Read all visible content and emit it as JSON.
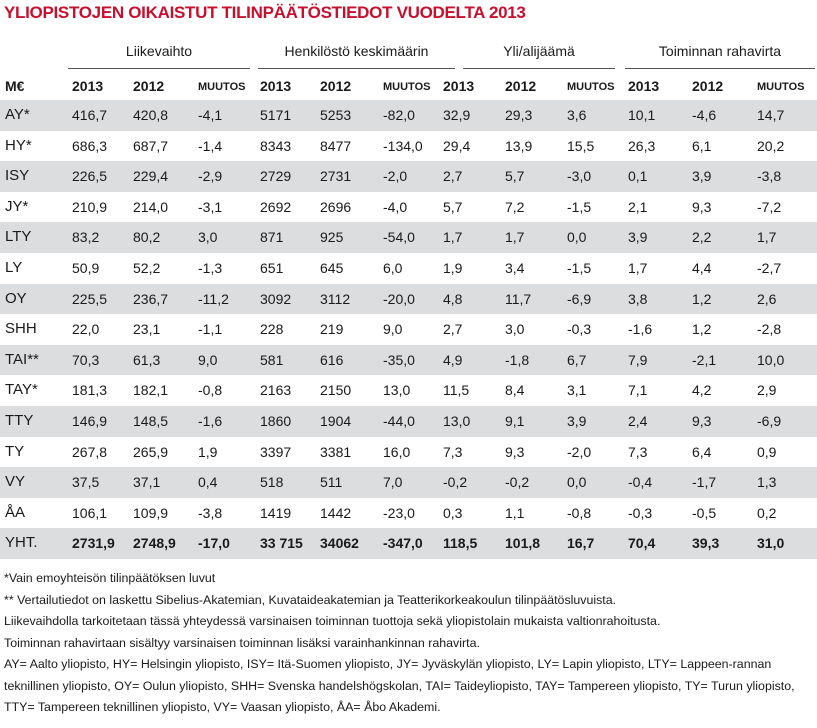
{
  "title": "YLIOPISTOJEN OIKAISTUT TILINPÄÄTÖSTIEDOT VUODELTA 2013",
  "table": {
    "groups": [
      "Liikevaihto",
      "Henkilöstö keskimäärin",
      "Yli/alijäämä",
      "Toiminnan rahavirta"
    ],
    "subheaders": [
      "M€",
      "2013",
      "2012",
      "MUUTOS",
      "2013",
      "2012",
      "MUUTOS",
      "2013",
      "2012",
      "MUUTOS",
      "2013",
      "2012",
      "MUUTOS"
    ],
    "rows": [
      [
        "AY*",
        "416,7",
        "420,8",
        "-4,1",
        "5171",
        "5253",
        "-82,0",
        "32,9",
        "29,3",
        "3,6",
        "10,1",
        "-4,6",
        "14,7"
      ],
      [
        "HY*",
        "686,3",
        "687,7",
        "-1,4",
        "8343",
        "8477",
        "-134,0",
        "29,4",
        "13,9",
        "15,5",
        "26,3",
        "6,1",
        "20,2"
      ],
      [
        "ISY",
        "226,5",
        "229,4",
        "-2,9",
        "2729",
        "2731",
        "-2,0",
        "2,7",
        "5,7",
        "-3,0",
        "0,1",
        "3,9",
        "-3,8"
      ],
      [
        "JY*",
        "210,9",
        "214,0",
        "-3,1",
        "2692",
        "2696",
        "-4,0",
        "5,7",
        "7,2",
        "-1,5",
        "2,1",
        "9,3",
        "-7,2"
      ],
      [
        "LTY",
        "83,2",
        "80,2",
        "3,0",
        "871",
        "925",
        "-54,0",
        "1,7",
        "1,7",
        "0,0",
        "3,9",
        "2,2",
        "1,7"
      ],
      [
        "LY",
        "50,9",
        "52,2",
        "-1,3",
        "651",
        "645",
        "6,0",
        "1,9",
        "3,4",
        "-1,5",
        "1,7",
        "4,4",
        "-2,7"
      ],
      [
        "OY",
        "225,5",
        "236,7",
        "-11,2",
        "3092",
        "3112",
        "-20,0",
        "4,8",
        "11,7",
        "-6,9",
        "3,8",
        "1,2",
        "2,6"
      ],
      [
        "SHH",
        "22,0",
        "23,1",
        "-1,1",
        "228",
        "219",
        "9,0",
        "2,7",
        "3,0",
        "-0,3",
        "-1,6",
        "1,2",
        "-2,8"
      ],
      [
        "TAI**",
        "70,3",
        "61,3",
        "9,0",
        "581",
        "616",
        "-35,0",
        "4,9",
        "-1,8",
        "6,7",
        "7,9",
        "-2,1",
        "10,0"
      ],
      [
        "TAY*",
        "181,3",
        "182,1",
        "-0,8",
        "2163",
        "2150",
        "13,0",
        "11,5",
        "8,4",
        "3,1",
        "7,1",
        "4,2",
        "2,9"
      ],
      [
        "TTY",
        "146,9",
        "148,5",
        "-1,6",
        "1860",
        "1904",
        "-44,0",
        "13,0",
        "9,1",
        "3,9",
        "2,4",
        "9,3",
        "-6,9"
      ],
      [
        "TY",
        "267,8",
        "265,9",
        "1,9",
        "3397",
        "3381",
        "16,0",
        "7,3",
        "9,3",
        "-2,0",
        "7,3",
        "6,4",
        "0,9"
      ],
      [
        "VY",
        "37,5",
        "37,1",
        "0,4",
        "518",
        "511",
        "7,0",
        "-0,2",
        "-0,2",
        "0,0",
        "-0,4",
        "-1,7",
        "1,3"
      ],
      [
        "ÅA",
        "106,1",
        "109,9",
        "-3,8",
        "1419",
        "1442",
        "-23,0",
        "0,3",
        "1,1",
        "-0,8",
        "-0,3",
        "-0,5",
        "0,2"
      ],
      [
        "YHT.",
        "2731,9",
        "2748,9",
        "-17,0",
        "33 715",
        "34062",
        "-347,0",
        "118,5",
        "101,8",
        "16,7",
        "70,4",
        "39,3",
        "31,0"
      ]
    ]
  },
  "footnotes": [
    "*Vain emoyhteisön tilinpäätöksen luvut",
    "** Vertailutiedot on laskettu Sibelius-Akatemian, Kuvataideakatemian ja Teatterikorkeakoulun tilinpäätösluvuista.",
    "Liikevaihdolla tarkoitetaan tässä yhteydessä varsinaisen toiminnan tuottoja sekä yliopistolain mukaista valtionrahoitusta.",
    "Toiminnan rahavirtaan sisältyy varsinaisen toiminnan  lisäksi varainhankinnan rahavirta.",
    "AY= Aalto yliopisto, HY= Helsingin yliopisto, ISY= Itä-Suomen yliopisto, JY= Jyväskylän yliopisto, LY= Lapin yliopisto, LTY= Lappeen-rannan teknillinen yliopisto, OY= Oulun yliopisto, SHH= Svenska handelshögskolan, TAI= Taideyliopisto, TAY= Tampereen yliopisto, TY= Turun yliopisto, TTY= Tampereen teknillinen yliopisto, VY= Vaasan yliopisto, ÅA= Åbo Akademi."
  ]
}
